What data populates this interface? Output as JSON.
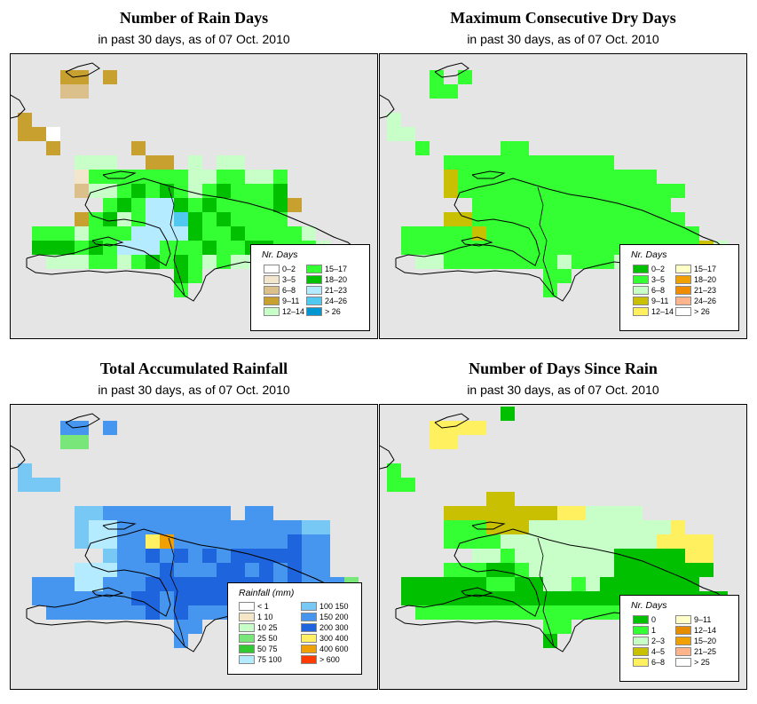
{
  "panels": [
    {
      "id": "rain_days",
      "title": "Number of Rain Days",
      "subtitle": "in past 30 days, as of  07 Oct. 2010",
      "legend_title": "Nr. Days",
      "legend_items": [
        {
          "label": "0–2",
          "color": "#ffffff"
        },
        {
          "label": "3–5",
          "color": "#f2e6cc"
        },
        {
          "label": "6–8",
          "color": "#dcc08c"
        },
        {
          "label": "9–11",
          "color": "#c8a030"
        },
        {
          "label": "12–14",
          "color": "#c8ffc8"
        },
        {
          "label": "15–17",
          "color": "#33ff33"
        },
        {
          "label": "18–20",
          "color": "#00c000"
        },
        {
          "label": "21–23",
          "color": "#b4ebff"
        },
        {
          "label": "24–26",
          "color": "#50c8f0"
        },
        {
          "label": "> 26",
          "color": "#0096d2"
        }
      ]
    },
    {
      "id": "dry_days",
      "title": "Maximum Consecutive Dry Days",
      "subtitle": "in past 30 days, as of  07 Oct. 2010",
      "legend_title": "Nr. Days",
      "legend_items": [
        {
          "label": "0–2",
          "color": "#00c000"
        },
        {
          "label": "3–5",
          "color": "#33ff33"
        },
        {
          "label": "6–8",
          "color": "#c8ffc8"
        },
        {
          "label": "9–11",
          "color": "#c8c000"
        },
        {
          "label": "12–14",
          "color": "#fff060"
        },
        {
          "label": "15–17",
          "color": "#ffffc8"
        },
        {
          "label": "18–20",
          "color": "#f0a000"
        },
        {
          "label": "21–23",
          "color": "#f08c00"
        },
        {
          "label": "24–26",
          "color": "#ffb48c"
        },
        {
          "label": "> 26",
          "color": "#ffffff"
        }
      ]
    },
    {
      "id": "rainfall",
      "title": "Total Accumulated Rainfall",
      "subtitle": "in past 30 days, as of  07 Oct. 2010",
      "legend_title": "Rainfall (mm)",
      "legend_items": [
        {
          "label": "< 1",
          "color": "#ffffff"
        },
        {
          "label": "1    10",
          "color": "#f5e6c8"
        },
        {
          "label": "10    25",
          "color": "#c8ffc8"
        },
        {
          "label": "25    50",
          "color": "#78e678"
        },
        {
          "label": "50    75",
          "color": "#32c832"
        },
        {
          "label": "75    100",
          "color": "#b4ebff"
        },
        {
          "label": "100    150",
          "color": "#78c8f5"
        },
        {
          "label": "150    200",
          "color": "#4696f0"
        },
        {
          "label": "200    300",
          "color": "#1e64dc"
        },
        {
          "label": "300    400",
          "color": "#fff064"
        },
        {
          "label": "400    600",
          "color": "#f0a000"
        },
        {
          "label": "> 600",
          "color": "#ff3c00"
        }
      ]
    },
    {
      "id": "since_rain",
      "title": "Number of Days Since Rain",
      "subtitle": "in past 30 days, as of  07 Oct. 2010",
      "legend_title": "Nr. Days",
      "legend_items": [
        {
          "label": "0",
          "color": "#00c000"
        },
        {
          "label": "1",
          "color": "#33ff33"
        },
        {
          "label": "2–3",
          "color": "#c8ffc8"
        },
        {
          "label": "4–5",
          "color": "#c8c000"
        },
        {
          "label": "6–8",
          "color": "#fff060"
        },
        {
          "label": "9–11",
          "color": "#ffffc8"
        },
        {
          "label": "12–14",
          "color": "#e68c00"
        },
        {
          "label": "15–20",
          "color": "#f0a000"
        },
        {
          "label": "21–25",
          "color": "#ffb48c"
        },
        {
          "label": "> 25",
          "color": "#ffffff"
        }
      ]
    }
  ]
}
